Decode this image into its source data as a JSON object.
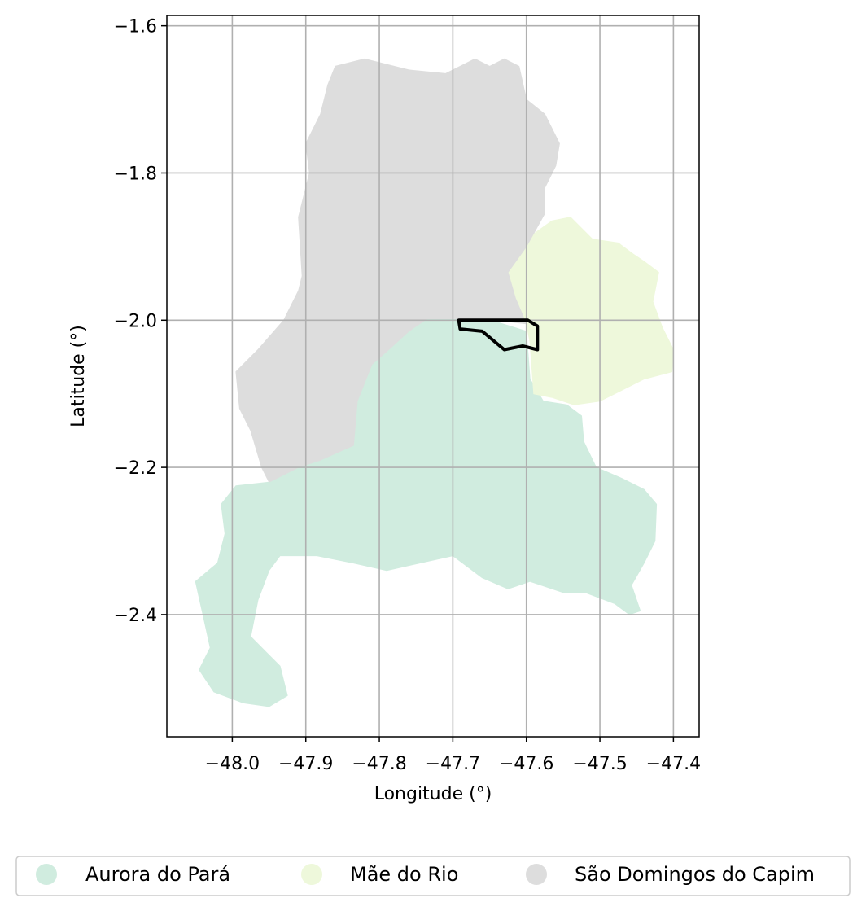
{
  "chart_data": {
    "type": "map",
    "xlabel": "Longitude (°)",
    "ylabel": "Latitude (°)",
    "xlim": [
      -48.089,
      -47.365
    ],
    "ylim": [
      -2.566,
      -1.586
    ],
    "x_ticks": [
      -48.0,
      -47.9,
      -47.8,
      -47.7,
      -47.6,
      -47.5,
      -47.4
    ],
    "x_tick_labels": [
      "−48.0",
      "−47.9",
      "−47.8",
      "−47.7",
      "−47.6",
      "−47.5",
      "−47.4"
    ],
    "y_ticks": [
      -1.6,
      -1.8,
      -2.0,
      -2.2,
      -2.4
    ],
    "y_tick_labels": [
      "−1.6",
      "−1.8",
      "−2.0",
      "−2.2",
      "−2.4"
    ],
    "grid": true,
    "legend_position": "bottom",
    "regions": [
      {
        "name": "Aurora do Pará",
        "color": "#d0ecdf",
        "polygon": [
          [
            -47.735,
            -1.998
          ],
          [
            -47.655,
            -1.998
          ],
          [
            -47.6,
            -2.015
          ],
          [
            -47.595,
            -2.08
          ],
          [
            -47.577,
            -2.11
          ],
          [
            -47.545,
            -2.115
          ],
          [
            -47.525,
            -2.13
          ],
          [
            -47.522,
            -2.165
          ],
          [
            -47.505,
            -2.2
          ],
          [
            -47.47,
            -2.215
          ],
          [
            -47.44,
            -2.23
          ],
          [
            -47.423,
            -2.25
          ],
          [
            -47.425,
            -2.3
          ],
          [
            -47.44,
            -2.33
          ],
          [
            -47.457,
            -2.36
          ],
          [
            -47.445,
            -2.395
          ],
          [
            -47.46,
            -2.4
          ],
          [
            -47.48,
            -2.385
          ],
          [
            -47.52,
            -2.37
          ],
          [
            -47.55,
            -2.37
          ],
          [
            -47.595,
            -2.355
          ],
          [
            -47.625,
            -2.365
          ],
          [
            -47.66,
            -2.35
          ],
          [
            -47.7,
            -2.32
          ],
          [
            -47.745,
            -2.33
          ],
          [
            -47.79,
            -2.34
          ],
          [
            -47.835,
            -2.33
          ],
          [
            -47.885,
            -2.32
          ],
          [
            -47.935,
            -2.32
          ],
          [
            -47.95,
            -2.34
          ],
          [
            -47.965,
            -2.38
          ],
          [
            -47.975,
            -2.43
          ],
          [
            -47.955,
            -2.45
          ],
          [
            -47.935,
            -2.47
          ],
          [
            -47.925,
            -2.51
          ],
          [
            -47.95,
            -2.525
          ],
          [
            -47.985,
            -2.52
          ],
          [
            -48.025,
            -2.505
          ],
          [
            -48.045,
            -2.475
          ],
          [
            -48.03,
            -2.445
          ],
          [
            -48.04,
            -2.4
          ],
          [
            -48.05,
            -2.355
          ],
          [
            -48.02,
            -2.33
          ],
          [
            -48.01,
            -2.29
          ],
          [
            -48.015,
            -2.25
          ],
          [
            -47.995,
            -2.225
          ],
          [
            -47.95,
            -2.22
          ],
          [
            -47.91,
            -2.2
          ],
          [
            -47.88,
            -2.19
          ],
          [
            -47.835,
            -2.17
          ],
          [
            -47.83,
            -2.11
          ],
          [
            -47.81,
            -2.06
          ],
          [
            -47.785,
            -2.038
          ],
          [
            -47.76,
            -2.015
          ]
        ]
      },
      {
        "name": "Mãe do Rio",
        "color": "#eef8db",
        "polygon": [
          [
            -47.565,
            -1.865
          ],
          [
            -47.54,
            -1.86
          ],
          [
            -47.51,
            -1.89
          ],
          [
            -47.475,
            -1.895
          ],
          [
            -47.455,
            -1.91
          ],
          [
            -47.44,
            -1.92
          ],
          [
            -47.42,
            -1.935
          ],
          [
            -47.428,
            -1.975
          ],
          [
            -47.415,
            -2.01
          ],
          [
            -47.4,
            -2.04
          ],
          [
            -47.402,
            -2.07
          ],
          [
            -47.44,
            -2.08
          ],
          [
            -47.47,
            -2.095
          ],
          [
            -47.5,
            -2.11
          ],
          [
            -47.535,
            -2.115
          ],
          [
            -47.565,
            -2.105
          ],
          [
            -47.59,
            -2.1
          ],
          [
            -47.595,
            -2.03
          ],
          [
            -47.6,
            -2.005
          ],
          [
            -47.615,
            -1.97
          ],
          [
            -47.625,
            -1.935
          ],
          [
            -47.6,
            -1.89
          ]
        ]
      },
      {
        "name": "São Domingos do Capim",
        "color": "#dddddd",
        "polygon": [
          [
            -47.86,
            -1.655
          ],
          [
            -47.82,
            -1.645
          ],
          [
            -47.78,
            -1.655
          ],
          [
            -47.76,
            -1.66
          ],
          [
            -47.71,
            -1.665
          ],
          [
            -47.67,
            -1.645
          ],
          [
            -47.65,
            -1.655
          ],
          [
            -47.63,
            -1.645
          ],
          [
            -47.61,
            -1.655
          ],
          [
            -47.6,
            -1.7
          ],
          [
            -47.575,
            -1.72
          ],
          [
            -47.555,
            -1.76
          ],
          [
            -47.56,
            -1.79
          ],
          [
            -47.575,
            -1.82
          ],
          [
            -47.575,
            -1.855
          ],
          [
            -47.6,
            -1.9
          ],
          [
            -47.625,
            -1.935
          ],
          [
            -47.615,
            -1.97
          ],
          [
            -47.6,
            -2.005
          ],
          [
            -47.655,
            -1.998
          ],
          [
            -47.735,
            -1.998
          ],
          [
            -47.76,
            -2.015
          ],
          [
            -47.785,
            -2.038
          ],
          [
            -47.81,
            -2.06
          ],
          [
            -47.83,
            -2.11
          ],
          [
            -47.835,
            -2.17
          ],
          [
            -47.88,
            -2.19
          ],
          [
            -47.91,
            -2.2
          ],
          [
            -47.95,
            -2.22
          ],
          [
            -47.96,
            -2.2
          ],
          [
            -47.975,
            -2.15
          ],
          [
            -47.99,
            -2.12
          ],
          [
            -47.995,
            -2.07
          ],
          [
            -47.965,
            -2.04
          ],
          [
            -47.93,
            -2.0
          ],
          [
            -47.91,
            -1.96
          ],
          [
            -47.905,
            -1.94
          ],
          [
            -47.91,
            -1.86
          ],
          [
            -47.895,
            -1.8
          ],
          [
            -47.9,
            -1.76
          ],
          [
            -47.88,
            -1.72
          ],
          [
            -47.87,
            -1.68
          ]
        ]
      }
    ],
    "highlight_outline": {
      "color": "#000000",
      "polygon": [
        [
          -47.692,
          -2.0
        ],
        [
          -47.598,
          -2.0
        ],
        [
          -47.585,
          -2.008
        ],
        [
          -47.585,
          -2.04
        ],
        [
          -47.605,
          -2.035
        ],
        [
          -47.63,
          -2.04
        ],
        [
          -47.66,
          -2.015
        ],
        [
          -47.69,
          -2.012
        ]
      ]
    }
  },
  "legend": {
    "items": [
      {
        "label": "Aurora do Pará",
        "color": "#d0ecdf"
      },
      {
        "label": "Mãe do Rio",
        "color": "#eef8db"
      },
      {
        "label": "São Domingos do Capim",
        "color": "#dddddd"
      }
    ]
  }
}
